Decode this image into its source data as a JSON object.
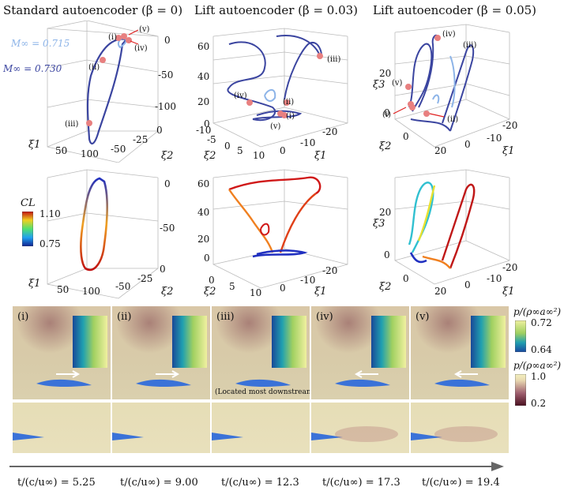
{
  "titles": {
    "col1": "Standard autoencoder (β = 0)",
    "col2": "Lift autoencoder (β = 0.03)",
    "col3": "Lift autoencoder (β = 0.05)"
  },
  "mach": {
    "m1": "M∞ = 0.715",
    "m2": "M∞ = 0.730",
    "color_m1": "#8db4e8",
    "color_m2": "#3b45a0"
  },
  "axes": {
    "xi1": "ξ1",
    "xi2": "ξ2",
    "xi3": "ξ3"
  },
  "ticks": {
    "p1_right": [
      "0",
      "-50",
      "-100"
    ],
    "p1_x1": [
      "50",
      "100"
    ],
    "p1_x2": [
      "-50",
      "-25",
      "0"
    ],
    "p2_left": [
      "60",
      "40",
      "20",
      "0"
    ],
    "p2_x2": [
      "-10",
      "-5",
      "0",
      "5",
      "10"
    ],
    "p2_x1": [
      "0",
      "-10",
      "-20"
    ],
    "p3_left": [
      "20",
      "0"
    ],
    "p3_x2": [
      "0",
      "20"
    ],
    "p3_x1": [
      "0",
      "-10",
      "-20"
    ],
    "p4_right": [
      "0",
      "-50"
    ],
    "p4_x1": [
      "50",
      "100"
    ],
    "p4_x2": [
      "-50",
      "-25",
      "0"
    ],
    "p5_left": [
      "60",
      "40",
      "20",
      "0"
    ],
    "p5_x2": [
      "0",
      "5",
      "10"
    ],
    "p5_x1": [
      "0",
      "-10",
      "-20"
    ],
    "p6_left": [
      "20",
      "0"
    ],
    "p6_x2": [
      "0",
      "20"
    ],
    "p6_x1": [
      "0",
      "-10",
      "-20"
    ]
  },
  "points": [
    "(i)",
    "(ii)",
    "(iii)",
    "(iv)",
    "(v)"
  ],
  "cl_bar": {
    "label": "CL",
    "max": "1.10",
    "min": "0.75"
  },
  "pressure_bar_1": {
    "label": "p/(ρ∞a∞²)",
    "max": "0.72",
    "min": "0.64"
  },
  "pressure_bar_2": {
    "label": "p/(ρ∞a∞²)",
    "max": "1.0",
    "min": "0.2"
  },
  "snapshots": {
    "labels": [
      "(i)",
      "(ii)",
      "(iii)",
      "(iv)",
      "(v)"
    ],
    "note": "(Located most downstream)"
  },
  "time": {
    "t1": "t/(c/u∞) = 5.25",
    "t2": "t/(c/u∞) = 9.00",
    "t3": "t/(c/u∞) = 12.3",
    "t4": "t/(c/u∞) = 17.3",
    "t5": "t/(c/u∞) = 19.4"
  }
}
